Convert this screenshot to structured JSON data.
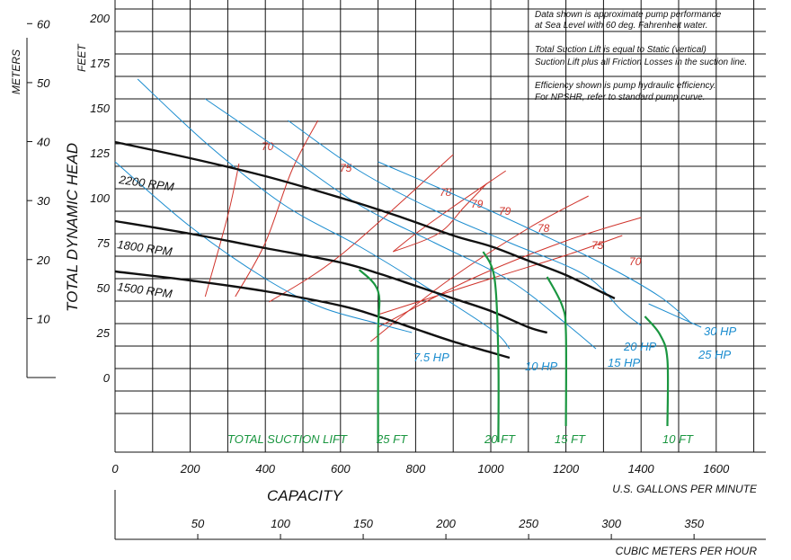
{
  "chart_data": {
    "type": "line",
    "notes": [
      "Data shown is approximate pump performance",
      "at Sea Level with 60 deg. Fahrenheit water.",
      "Total Suction Lift is equal to Static (vertical)",
      "Suction Lift plus all Friction Losses in the suction line.",
      "Efficiency shown is pump hydraulic efficiency.",
      "For NPSHR, refer to standard pump curve."
    ],
    "axes": {
      "y_left_title": "TOTAL DYNAMIC HEAD",
      "y_feet_unit": "FEET",
      "y_meters_unit": "METERS",
      "x_title": "CAPACITY",
      "x_gpm_unit": "U.S. GALLONS PER MINUTE",
      "x_cmh_unit": "CUBIC METERS PER HOUR",
      "x_gpm_ticks": [
        0,
        200,
        400,
        600,
        800,
        1000,
        1200,
        1400,
        1600
      ],
      "y_feet_ticks": [
        0,
        25,
        50,
        75,
        100,
        125,
        150,
        175,
        200
      ],
      "y_meters_ticks": [
        10,
        20,
        30,
        40,
        50,
        60
      ],
      "x_cmh_ticks": [
        50,
        100,
        150,
        200,
        250,
        300,
        350
      ],
      "xlim": [
        0,
        1700
      ],
      "ylim": [
        -25,
        240
      ]
    },
    "rpm_curves": [
      {
        "name": "2200 RPM",
        "x": [
          0,
          200,
          400,
          600,
          750,
          900,
          1000,
          1100,
          1200,
          1300,
          1330
        ],
        "y": [
          131,
          122,
          112,
          100,
          90,
          79,
          73,
          65,
          57,
          47,
          44
        ]
      },
      {
        "name": "1800 RPM",
        "x": [
          0,
          200,
          400,
          600,
          700,
          800,
          900,
          1000,
          1100,
          1150
        ],
        "y": [
          87,
          80,
          72,
          64,
          58,
          51,
          44,
          37,
          28,
          25
        ]
      },
      {
        "name": "1500 RPM",
        "x": [
          0,
          200,
          400,
          600,
          700,
          800,
          900,
          1000,
          1050
        ],
        "y": [
          59,
          54,
          48,
          40,
          34,
          27,
          20,
          14,
          11
        ]
      }
    ],
    "hp_curves": [
      {
        "name": "7.5 HP",
        "x": [
          0,
          200,
          400,
          550,
          700,
          790
        ],
        "y": [
          120,
          84,
          55,
          39,
          30,
          25
        ]
      },
      {
        "name": "10 HP",
        "x": [
          60,
          250,
          450,
          650,
          800,
          1000,
          1050
        ],
        "y": [
          166,
          129,
          96,
          73,
          54,
          27,
          16
        ]
      },
      {
        "name": "15 HP",
        "x": [
          240,
          450,
          650,
          850,
          1050,
          1200,
          1280
        ],
        "y": [
          155,
          125,
          96,
          75,
          54,
          30,
          16
        ]
      },
      {
        "name": "20 HP",
        "x": [
          460,
          650,
          850,
          1050,
          1250,
          1350,
          1400
        ],
        "y": [
          143,
          115,
          93,
          75,
          57,
          37,
          29
        ]
      },
      {
        "name": "25 HP",
        "x": [
          700,
          900,
          1100,
          1300,
          1450,
          1530
        ],
        "y": [
          120,
          102,
          83,
          63,
          45,
          31
        ]
      },
      {
        "name": "30 HP",
        "x": [
          1420,
          1560
        ],
        "y": [
          41,
          28
        ]
      }
    ],
    "efficiency_curves": [
      {
        "label": "70",
        "x": [
          240,
          300,
          330
        ],
        "y": [
          45,
          90,
          119
        ]
      },
      {
        "label": "75",
        "x": [
          320,
          400,
          470,
          540
        ],
        "y": [
          45,
          75,
          115,
          143
        ]
      },
      {
        "label": "78",
        "x": [
          410,
          600,
          900
        ],
        "y": [
          42,
          68,
          124
        ]
      },
      {
        "label": "79",
        "x": [
          740,
          800,
          900,
          1040
        ],
        "y": [
          70,
          80,
          95,
          115
        ]
      },
      {
        "label": "79",
        "x": [
          740,
          860,
          930,
          990
        ],
        "y": [
          70,
          80,
          95,
          108
        ]
      },
      {
        "label": "78",
        "x": [
          680,
          880,
          1100,
          1260
        ],
        "y": [
          20,
          53,
          83,
          101
        ]
      },
      {
        "label": "75",
        "x": [
          700,
          950,
          1200,
          1400
        ],
        "y": [
          28,
          55,
          76,
          89
        ]
      },
      {
        "label": "70",
        "x": [
          700,
          1000,
          1200,
          1350
        ],
        "y": [
          35,
          55,
          68,
          79
        ]
      }
    ],
    "suction_lift_curves": [
      {
        "label": "25 FT",
        "x": [
          650,
          700,
          700,
          700
        ],
        "y": [
          60,
          48,
          24,
          -36
        ]
      },
      {
        "label": "20 FT",
        "x": [
          980,
          1010,
          1020,
          1020
        ],
        "y": [
          70,
          55,
          11,
          -36
        ]
      },
      {
        "label": "15 FT",
        "x": [
          1150,
          1190,
          1200,
          1200
        ],
        "y": [
          56,
          40,
          25,
          -27
        ]
      },
      {
        "label": "10 FT",
        "x": [
          1410,
          1450,
          1470,
          1470
        ],
        "y": [
          34,
          24,
          10,
          -27
        ]
      }
    ],
    "suction_lift_title": "TOTAL SUCTION LIFT"
  },
  "colors": {
    "rpm": "#111111",
    "hp": "#1a8ccf",
    "efficiency": "#d0342c",
    "suction": "#1a9640",
    "grid": "#111111"
  }
}
